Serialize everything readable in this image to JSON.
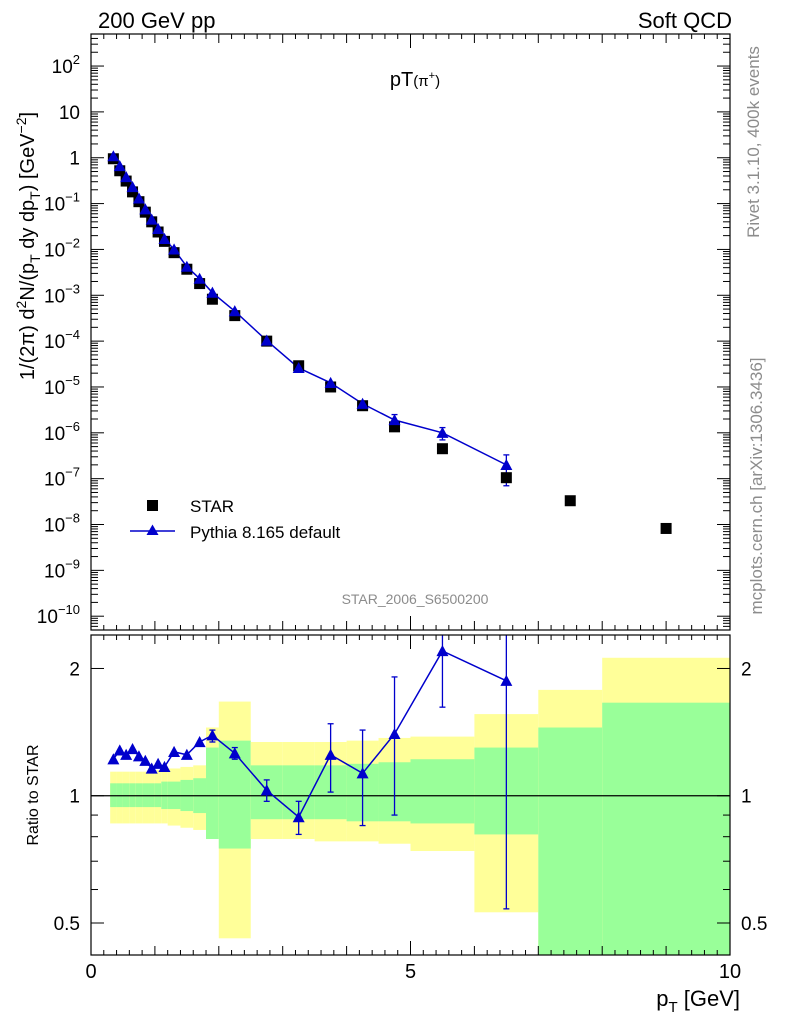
{
  "header": {
    "left": "200 GeV pp",
    "right": "Soft QCD"
  },
  "side": {
    "rivet": "Rivet 3.1.10,  400k events",
    "mcplots": "mcplots.cern.ch [arXiv:1306.3436]"
  },
  "colors": {
    "mc": "#0000cc",
    "data": "#000000",
    "band_yellow": "#ffff99",
    "band_green": "#99ff99"
  },
  "chart_data": [
    {
      "type": "scatter",
      "title_main": "pT",
      "title_sub": "(π",
      "title_sup": "+",
      "title_close": ")",
      "watermark": "STAR_2006_S6500200",
      "ylabel": "1/(2π) d²N/(p_T dy dp_T) [GeV⁻²]",
      "yscale": "log",
      "xlim": [
        0,
        10
      ],
      "ylim": [
        5e-11,
        500
      ],
      "ytick_labels": [
        {
          "value": 100,
          "base": "10",
          "exp": "2"
        },
        {
          "value": 10,
          "base": "10",
          "exp": ""
        },
        {
          "value": 1,
          "base": "1",
          "exp": ""
        },
        {
          "value": 0.1,
          "base": "10",
          "exp": "−1"
        },
        {
          "value": 0.01,
          "base": "10",
          "exp": "−2"
        },
        {
          "value": 0.001,
          "base": "10",
          "exp": "−3"
        },
        {
          "value": 0.0001,
          "base": "10",
          "exp": "−4"
        },
        {
          "value": 1e-05,
          "base": "10",
          "exp": "−5"
        },
        {
          "value": 1e-06,
          "base": "10",
          "exp": "−6"
        },
        {
          "value": 1e-07,
          "base": "10",
          "exp": "−7"
        },
        {
          "value": 1e-08,
          "base": "10",
          "exp": "−8"
        },
        {
          "value": 1e-09,
          "base": "10",
          "exp": "−9"
        },
        {
          "value": 1e-10,
          "base": "10",
          "exp": "−10"
        }
      ],
      "legend": {
        "data_label": "STAR",
        "mc_label": "Pythia 8.165 default",
        "position": "lower-left"
      },
      "series": [
        {
          "name": "STAR",
          "x": [
            0.35,
            0.45,
            0.55,
            0.65,
            0.75,
            0.85,
            0.95,
            1.05,
            1.15,
            1.3,
            1.5,
            1.7,
            1.9,
            2.25,
            2.75,
            3.25,
            3.75,
            4.25,
            4.75,
            5.5,
            6.5,
            7.5,
            9.0
          ],
          "y": [
            0.95,
            0.52,
            0.31,
            0.18,
            0.11,
            0.065,
            0.04,
            0.024,
            0.015,
            0.0085,
            0.0037,
            0.0018,
            0.00082,
            0.00036,
            0.0001,
            2.9e-05,
            1e-05,
            3.9e-06,
            1.35e-06,
            4.5e-07,
            1.05e-07,
            3.3e-08,
            8.2e-09
          ]
        },
        {
          "name": "Pythia 8.165 default",
          "x": [
            0.35,
            0.45,
            0.55,
            0.65,
            0.75,
            0.85,
            0.95,
            1.05,
            1.15,
            1.3,
            1.5,
            1.7,
            1.9,
            2.25,
            2.75,
            3.25,
            3.75,
            4.25,
            4.75,
            5.5,
            6.5
          ],
          "y": [
            1.08,
            0.66,
            0.38,
            0.23,
            0.13,
            0.075,
            0.045,
            0.028,
            0.017,
            0.01,
            0.0042,
            0.0023,
            0.00114,
            0.00045,
            0.000103,
            2.6e-05,
            1.23e-05,
            4.3e-06,
            1.9e-06,
            1e-06,
            2e-07
          ],
          "yerr_lo": [
            0,
            0,
            0,
            0,
            0,
            0,
            0,
            0,
            0,
            0,
            0,
            0,
            0,
            0,
            0,
            0,
            0,
            0,
            6e-07,
            3e-07,
            1.3e-07
          ],
          "yerr_hi": [
            0,
            0,
            0,
            0,
            0,
            0,
            0,
            0,
            0,
            0,
            0,
            0,
            0,
            0,
            0,
            0,
            0,
            0,
            6e-07,
            3e-07,
            1.3e-07
          ]
        }
      ]
    },
    {
      "type": "scatter",
      "ylabel": "Ratio to STAR",
      "xlabel_main": "p",
      "xlabel_sub": "T",
      "xlabel_unit": " [GeV]",
      "xlim": [
        0,
        10
      ],
      "ylim": [
        0.42,
        2.4
      ],
      "xtick_labels": [
        {
          "value": 0,
          "label": "0"
        },
        {
          "value": 5,
          "label": "5"
        },
        {
          "value": 10,
          "label": "10"
        }
      ],
      "ytick_labels": [
        {
          "value": 0.5,
          "label": "0.5"
        },
        {
          "value": 1,
          "label": "1"
        },
        {
          "value": 2,
          "label": "2"
        }
      ],
      "bands": [
        {
          "x0": 0.3,
          "x1": 0.4,
          "y_lo": 0.86,
          "y_hi": 1.14,
          "g_lo": 0.94,
          "g_hi": 1.07
        },
        {
          "x0": 0.4,
          "x1": 0.5,
          "y_lo": 0.86,
          "y_hi": 1.14,
          "g_lo": 0.94,
          "g_hi": 1.07
        },
        {
          "x0": 0.5,
          "x1": 0.6,
          "y_lo": 0.86,
          "y_hi": 1.14,
          "g_lo": 0.94,
          "g_hi": 1.07
        },
        {
          "x0": 0.6,
          "x1": 0.7,
          "y_lo": 0.86,
          "y_hi": 1.14,
          "g_lo": 0.94,
          "g_hi": 1.07
        },
        {
          "x0": 0.7,
          "x1": 0.8,
          "y_lo": 0.86,
          "y_hi": 1.14,
          "g_lo": 0.94,
          "g_hi": 1.07
        },
        {
          "x0": 0.8,
          "x1": 0.9,
          "y_lo": 0.86,
          "y_hi": 1.14,
          "g_lo": 0.94,
          "g_hi": 1.07
        },
        {
          "x0": 0.9,
          "x1": 1.0,
          "y_lo": 0.86,
          "y_hi": 1.15,
          "g_lo": 0.94,
          "g_hi": 1.07
        },
        {
          "x0": 1.0,
          "x1": 1.1,
          "y_lo": 0.86,
          "y_hi": 1.15,
          "g_lo": 0.94,
          "g_hi": 1.07
        },
        {
          "x0": 1.1,
          "x1": 1.2,
          "y_lo": 0.86,
          "y_hi": 1.15,
          "g_lo": 0.93,
          "g_hi": 1.08
        },
        {
          "x0": 1.2,
          "x1": 1.4,
          "y_lo": 0.85,
          "y_hi": 1.16,
          "g_lo": 0.93,
          "g_hi": 1.08
        },
        {
          "x0": 1.4,
          "x1": 1.6,
          "y_lo": 0.84,
          "y_hi": 1.17,
          "g_lo": 0.92,
          "g_hi": 1.09
        },
        {
          "x0": 1.6,
          "x1": 1.8,
          "y_lo": 0.83,
          "y_hi": 1.18,
          "g_lo": 0.91,
          "g_hi": 1.1
        },
        {
          "x0": 1.8,
          "x1": 2.0,
          "y_lo": 0.82,
          "y_hi": 1.45,
          "g_lo": 0.79,
          "g_hi": 1.3
        },
        {
          "x0": 2.0,
          "x1": 2.5,
          "y_lo": 0.46,
          "y_hi": 1.67,
          "g_lo": 0.75,
          "g_hi": 1.35
        },
        {
          "x0": 2.5,
          "x1": 3.0,
          "y_lo": 0.79,
          "y_hi": 1.34,
          "g_lo": 0.88,
          "g_hi": 1.18
        },
        {
          "x0": 3.0,
          "x1": 3.5,
          "y_lo": 0.79,
          "y_hi": 1.34,
          "g_lo": 0.88,
          "g_hi": 1.18
        },
        {
          "x0": 3.5,
          "x1": 4.0,
          "y_lo": 0.78,
          "y_hi": 1.34,
          "g_lo": 0.88,
          "g_hi": 1.18
        },
        {
          "x0": 4.0,
          "x1": 4.5,
          "y_lo": 0.78,
          "y_hi": 1.35,
          "g_lo": 0.87,
          "g_hi": 1.19
        },
        {
          "x0": 4.5,
          "x1": 5.0,
          "y_lo": 0.77,
          "y_hi": 1.37,
          "g_lo": 0.87,
          "g_hi": 1.2
        },
        {
          "x0": 5.0,
          "x1": 6.0,
          "y_lo": 0.74,
          "y_hi": 1.38,
          "g_lo": 0.86,
          "g_hi": 1.22
        },
        {
          "x0": 6.0,
          "x1": 7.0,
          "y_lo": 0.53,
          "y_hi": 1.56,
          "g_lo": 0.81,
          "g_hi": 1.3
        },
        {
          "x0": 7.0,
          "x1": 8.0,
          "y_lo": 0.42,
          "y_hi": 1.78,
          "g_lo": 0.42,
          "g_hi": 1.45
        },
        {
          "x0": 8.0,
          "x1": 10.0,
          "y_lo": 0.42,
          "y_hi": 2.12,
          "g_lo": 0.42,
          "g_hi": 1.66
        }
      ],
      "series": [
        {
          "name": "Pythia 8.165 default / STAR",
          "x": [
            0.35,
            0.45,
            0.55,
            0.65,
            0.75,
            0.85,
            0.95,
            1.05,
            1.15,
            1.3,
            1.5,
            1.7,
            1.9,
            2.25,
            2.75,
            3.25,
            3.75,
            4.25,
            4.75,
            5.5,
            6.5
          ],
          "y": [
            1.22,
            1.28,
            1.25,
            1.29,
            1.24,
            1.21,
            1.16,
            1.19,
            1.17,
            1.27,
            1.25,
            1.34,
            1.39,
            1.26,
            1.03,
            0.89,
            1.25,
            1.13,
            1.4,
            2.2,
            1.87
          ],
          "yerr_lo": [
            0,
            0,
            0,
            0,
            0,
            0,
            0,
            0,
            0,
            0,
            0,
            0,
            0.05,
            0.04,
            0.06,
            0.08,
            0.23,
            0.28,
            0.5,
            0.58,
            1.33
          ],
          "yerr_hi": [
            0,
            0,
            0,
            0,
            0,
            0,
            0,
            0,
            0,
            0,
            0,
            0,
            0.04,
            0.04,
            0.06,
            0.08,
            0.23,
            0.3,
            0.51,
            0.58,
            0.6
          ]
        }
      ]
    }
  ]
}
